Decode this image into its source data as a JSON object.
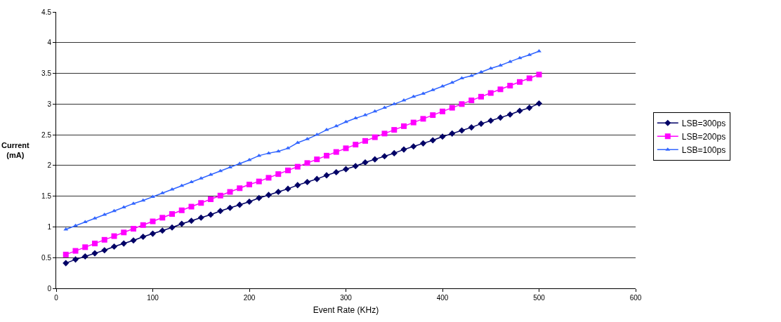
{
  "chart_data": {
    "type": "line",
    "xlabel": "Event Rate (KHz)",
    "ylabel": "Current (mA)",
    "x": [
      10,
      20,
      30,
      40,
      50,
      60,
      70,
      80,
      90,
      100,
      110,
      120,
      130,
      140,
      150,
      160,
      170,
      180,
      190,
      200,
      210,
      220,
      230,
      240,
      250,
      260,
      270,
      280,
      290,
      300,
      310,
      320,
      330,
      340,
      350,
      360,
      370,
      380,
      390,
      400,
      410,
      420,
      430,
      440,
      450,
      460,
      470,
      480,
      490,
      500
    ],
    "xlim": [
      0,
      600
    ],
    "xticks": [
      0,
      100,
      200,
      300,
      400,
      500,
      600
    ],
    "ylim": [
      0,
      4.5
    ],
    "yticks": [
      0,
      0.5,
      1,
      1.5,
      2,
      2.5,
      3,
      3.5,
      4,
      4.5
    ],
    "grid": "y",
    "legend": "right",
    "series": [
      {
        "name": "LSB=300ps",
        "color": "#000066",
        "marker": "diamond",
        "values": [
          0.41,
          0.47,
          0.52,
          0.57,
          0.62,
          0.68,
          0.73,
          0.78,
          0.84,
          0.89,
          0.94,
          0.99,
          1.05,
          1.1,
          1.15,
          1.2,
          1.26,
          1.31,
          1.36,
          1.41,
          1.47,
          1.52,
          1.57,
          1.62,
          1.68,
          1.73,
          1.78,
          1.84,
          1.89,
          1.94,
          1.99,
          2.05,
          2.1,
          2.15,
          2.2,
          2.26,
          2.31,
          2.36,
          2.41,
          2.47,
          2.52,
          2.57,
          2.62,
          2.68,
          2.73,
          2.78,
          2.83,
          2.89,
          2.94,
          3.01
        ]
      },
      {
        "name": "LSB=200ps",
        "color": "#ff00ff",
        "marker": "square",
        "values": [
          0.55,
          0.61,
          0.67,
          0.73,
          0.79,
          0.85,
          0.91,
          0.97,
          1.03,
          1.09,
          1.15,
          1.21,
          1.27,
          1.33,
          1.39,
          1.45,
          1.51,
          1.57,
          1.63,
          1.69,
          1.74,
          1.8,
          1.86,
          1.92,
          1.98,
          2.04,
          2.1,
          2.16,
          2.22,
          2.28,
          2.34,
          2.4,
          2.46,
          2.52,
          2.58,
          2.64,
          2.7,
          2.76,
          2.82,
          2.88,
          2.94,
          3.0,
          3.06,
          3.12,
          3.18,
          3.24,
          3.3,
          3.36,
          3.42,
          3.48
        ]
      },
      {
        "name": "LSB=100ps",
        "color": "#3366ff",
        "marker": "triangle",
        "values": [
          0.96,
          1.02,
          1.08,
          1.14,
          1.2,
          1.26,
          1.32,
          1.38,
          1.43,
          1.49,
          1.55,
          1.61,
          1.67,
          1.73,
          1.79,
          1.85,
          1.91,
          1.97,
          2.03,
          2.09,
          2.16,
          2.2,
          2.23,
          2.28,
          2.37,
          2.43,
          2.5,
          2.58,
          2.64,
          2.71,
          2.77,
          2.82,
          2.88,
          2.94,
          3.0,
          3.06,
          3.12,
          3.17,
          3.23,
          3.29,
          3.35,
          3.42,
          3.46,
          3.52,
          3.58,
          3.63,
          3.69,
          3.75,
          3.8,
          3.86
        ]
      }
    ]
  }
}
